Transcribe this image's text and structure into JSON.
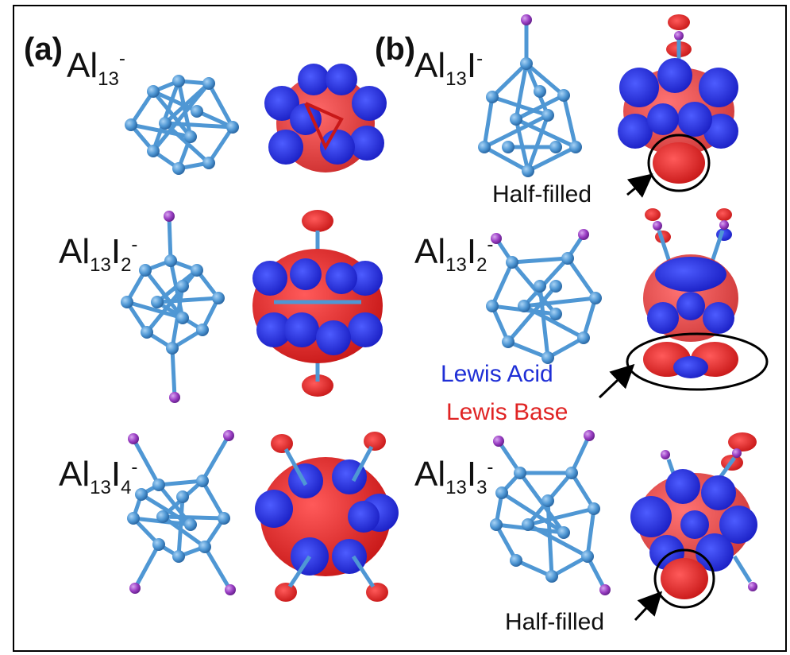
{
  "panels": {
    "a": "(a)",
    "b": "(b)"
  },
  "formulas": [
    {
      "base": "Al",
      "n1": "13",
      "mid": "",
      "n2": "",
      "charge": "-"
    },
    {
      "base": "Al",
      "n1": "13",
      "mid": "I",
      "n2": "2",
      "charge": "-"
    },
    {
      "base": "Al",
      "n1": "13",
      "mid": "I",
      "n2": "4",
      "charge": "-"
    },
    {
      "base": "Al",
      "n1": "13",
      "mid": "I",
      "n2": "",
      "charge": "-"
    },
    {
      "base": "Al",
      "n1": "13",
      "mid": "I",
      "n2": "2",
      "charge": "-"
    },
    {
      "base": "Al",
      "n1": "13",
      "mid": "I",
      "n2": "3",
      "charge": "-"
    }
  ],
  "annotations": {
    "half_filled": "Half-filled"
  },
  "legend": {
    "acid": {
      "label": "Lewis Acid",
      "color": "#1f2fd6"
    },
    "base": {
      "label": "Lewis Base",
      "color": "#e02424"
    }
  },
  "colors": {
    "aluminum": "#4f97d4",
    "iodine": "#9b3fc4"
  }
}
